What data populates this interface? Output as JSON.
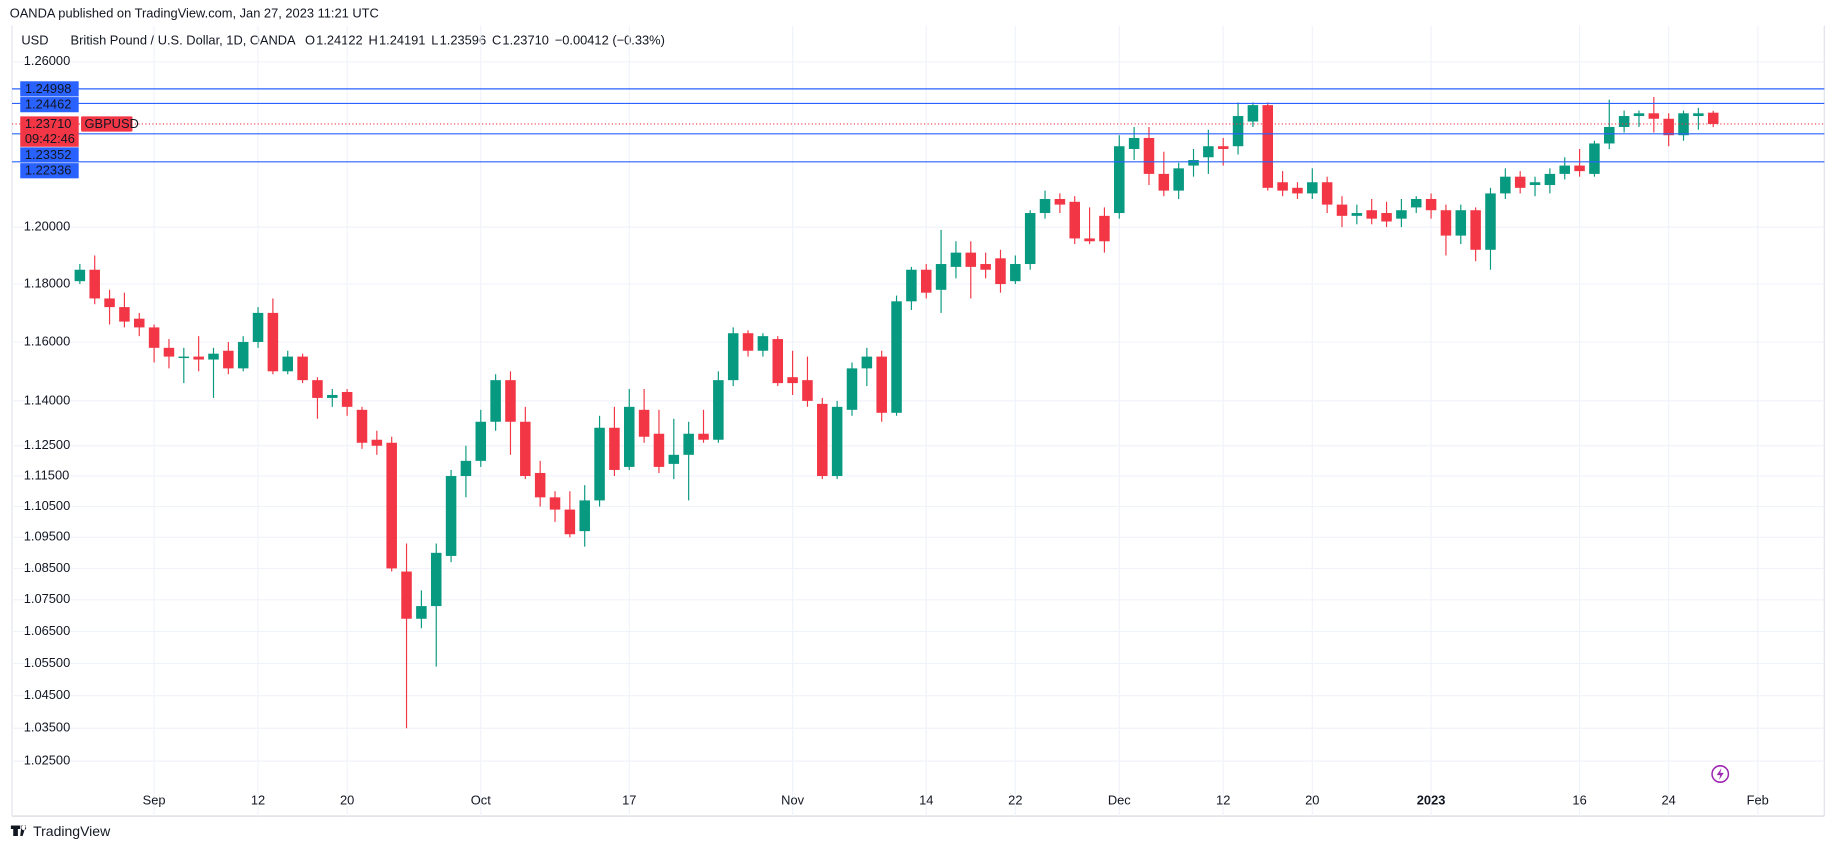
{
  "header": {
    "published": "OANDA published on TradingView.com, Jan 27, 2023 11:21 UTC",
    "brand": "TradingView"
  },
  "chart_data": {
    "type": "candlestick",
    "title": "British Pound / U.S. Dollar, 1D, OANDA",
    "currency": "USD",
    "legend": [
      {
        "key": "O",
        "value": "1.24122"
      },
      {
        "key": "H",
        "value": "1.24191"
      },
      {
        "key": "L",
        "value": "1.23596"
      },
      {
        "key": "C",
        "value": "1.23710"
      }
    ],
    "change": "−0.00412 (−0.33%)",
    "log": true,
    "grid": true,
    "up_color": "#089981",
    "down_color": "#f23645",
    "ylim": [
      1.0183,
      1.2735
    ],
    "yticks": [
      {
        "value": 1.26,
        "label": "1.26000"
      },
      {
        "value": 1.2,
        "label": "1.20000"
      },
      {
        "value": 1.18,
        "label": "1.18000"
      },
      {
        "value": 1.16,
        "label": "1.16000"
      },
      {
        "value": 1.14,
        "label": "1.14000"
      },
      {
        "value": 1.125,
        "label": "1.12500"
      },
      {
        "value": 1.115,
        "label": "1.11500"
      },
      {
        "value": 1.105,
        "label": "1.10500"
      },
      {
        "value": 1.095,
        "label": "1.09500"
      },
      {
        "value": 1.085,
        "label": "1.08500"
      },
      {
        "value": 1.075,
        "label": "1.07500"
      },
      {
        "value": 1.065,
        "label": "1.06500"
      },
      {
        "value": 1.055,
        "label": "1.05500"
      },
      {
        "value": 1.045,
        "label": "1.04500"
      },
      {
        "value": 1.035,
        "label": "1.03500"
      },
      {
        "value": 1.025,
        "label": "1.02500"
      }
    ],
    "price_lines": [
      {
        "value": 1.24998,
        "label": "1.24998",
        "color": "#2962ff"
      },
      {
        "value": 1.24462,
        "label": "1.24462",
        "color": "#2962ff"
      },
      {
        "value": 1.23352,
        "label": "1.23352",
        "color": "#2962ff"
      },
      {
        "value": 1.22336,
        "label": "1.22336",
        "color": "#2962ff"
      }
    ],
    "last_price": {
      "value": 1.2371,
      "label": "1.23710",
      "symbol": "GBPUSD",
      "countdown": "09:42:46",
      "color": "#f23645"
    },
    "categories": [
      null,
      null,
      null,
      null,
      null,
      "Sep",
      null,
      null,
      null,
      null,
      null,
      null,
      "12",
      null,
      null,
      null,
      null,
      null,
      "20",
      null,
      null,
      null,
      null,
      null,
      null,
      null,
      null,
      "Oct",
      null,
      null,
      null,
      null,
      null,
      null,
      null,
      null,
      null,
      "17",
      null,
      null,
      null,
      null,
      null,
      null,
      null,
      null,
      null,
      null,
      "Nov",
      null,
      null,
      null,
      null,
      null,
      null,
      null,
      null,
      "14",
      null,
      null,
      null,
      null,
      null,
      "22",
      null,
      null,
      null,
      null,
      null,
      null,
      "Dec",
      null,
      null,
      null,
      null,
      null,
      null,
      "12",
      null,
      null,
      null,
      null,
      null,
      "20",
      null,
      null,
      null,
      null,
      null,
      null,
      null,
      "2023",
      null,
      null,
      null,
      null,
      null,
      null,
      null,
      null,
      null,
      "16",
      null,
      null,
      null,
      null,
      null,
      "24",
      null,
      null,
      null,
      null,
      null,
      "Feb"
    ],
    "open": [
      1.181,
      1.185,
      1.175,
      1.172,
      1.168,
      1.165,
      1.158,
      1.1545,
      1.155,
      1.154,
      1.157,
      1.151,
      1.16,
      1.17,
      1.15,
      1.155,
      1.147,
      1.141,
      1.143,
      1.137,
      1.127,
      1.126,
      1.084,
      1.069,
      1.073,
      1.089,
      1.115,
      1.12,
      1.133,
      1.147,
      1.133,
      1.116,
      1.108,
      1.104,
      1.097,
      1.107,
      1.131,
      1.118,
      1.137,
      1.129,
      1.119,
      1.122,
      1.129,
      1.127,
      1.147,
      1.163,
      1.157,
      1.161,
      1.148,
      1.147,
      1.139,
      1.115,
      1.137,
      1.151,
      1.155,
      1.136,
      1.174,
      1.185,
      1.178,
      1.186,
      1.191,
      1.187,
      1.189,
      1.181,
      1.187,
      1.205,
      1.21,
      1.209,
      1.196,
      1.204,
      1.205,
      1.228,
      1.232,
      1.219,
      1.213,
      1.222,
      1.225,
      1.229,
      1.229,
      1.238,
      1.244,
      1.216,
      1.214,
      1.212,
      1.216,
      1.208,
      1.204,
      1.206,
      1.205,
      1.203,
      1.207,
      1.21,
      1.206,
      1.197,
      1.206,
      1.192,
      1.212,
      1.218,
      1.215,
      1.215,
      1.219,
      1.222,
      1.219,
      1.23,
      1.236,
      1.24,
      1.241,
      1.239,
      1.233,
      1.24,
      1.24122,
      null,
      null,
      null
    ],
    "high": [
      1.187,
      1.19,
      1.178,
      1.177,
      1.17,
      1.166,
      1.161,
      1.158,
      1.162,
      1.158,
      1.16,
      1.162,
      1.172,
      1.175,
      1.157,
      1.156,
      1.148,
      1.144,
      1.144,
      1.138,
      1.13,
      1.128,
      1.093,
      1.078,
      1.093,
      1.117,
      1.125,
      1.137,
      1.149,
      1.15,
      1.138,
      1.12,
      1.11,
      1.11,
      1.112,
      1.135,
      1.138,
      1.144,
      1.144,
      1.137,
      1.134,
      1.133,
      1.137,
      1.15,
      1.165,
      1.164,
      1.163,
      1.162,
      1.157,
      1.155,
      1.141,
      1.14,
      1.153,
      1.158,
      1.157,
      1.176,
      1.186,
      1.187,
      1.199,
      1.195,
      1.195,
      1.191,
      1.192,
      1.19,
      1.206,
      1.213,
      1.212,
      1.211,
      1.207,
      1.207,
      1.233,
      1.236,
      1.236,
      1.227,
      1.223,
      1.228,
      1.235,
      1.232,
      1.245,
      1.245,
      1.245,
      1.22,
      1.216,
      1.221,
      1.218,
      1.211,
      1.208,
      1.21,
      1.209,
      1.21,
      1.211,
      1.212,
      1.208,
      1.208,
      1.207,
      1.214,
      1.221,
      1.22,
      1.218,
      1.221,
      1.225,
      1.228,
      1.231,
      1.246,
      1.242,
      1.242,
      1.247,
      1.241,
      1.242,
      1.243,
      1.24191,
      null,
      null,
      null
    ],
    "low": [
      1.18,
      1.173,
      1.166,
      1.165,
      1.162,
      1.153,
      1.151,
      1.146,
      1.15,
      1.141,
      1.149,
      1.15,
      1.158,
      1.149,
      1.149,
      1.146,
      1.134,
      1.138,
      1.135,
      1.124,
      1.122,
      1.084,
      1.035,
      1.066,
      1.054,
      1.087,
      1.108,
      1.118,
      1.13,
      1.122,
      1.114,
      1.105,
      1.1,
      1.095,
      1.092,
      1.105,
      1.115,
      1.117,
      1.126,
      1.116,
      1.114,
      1.107,
      1.126,
      1.126,
      1.145,
      1.155,
      1.155,
      1.145,
      1.142,
      1.138,
      1.114,
      1.114,
      1.135,
      1.145,
      1.133,
      1.135,
      1.171,
      1.175,
      1.17,
      1.182,
      1.175,
      1.182,
      1.177,
      1.18,
      1.185,
      1.203,
      1.205,
      1.194,
      1.194,
      1.191,
      1.203,
      1.224,
      1.215,
      1.211,
      1.21,
      1.218,
      1.219,
      1.222,
      1.226,
      1.236,
      1.213,
      1.211,
      1.21,
      1.21,
      1.205,
      1.2,
      1.201,
      1.201,
      1.2,
      1.2,
      1.205,
      1.203,
      1.19,
      1.194,
      1.188,
      1.185,
      1.21,
      1.212,
      1.211,
      1.212,
      1.217,
      1.218,
      1.218,
      1.228,
      1.234,
      1.236,
      1.234,
      1.229,
      1.231,
      1.235,
      1.23596,
      null,
      null,
      null
    ],
    "close": [
      1.185,
      1.175,
      1.172,
      1.167,
      1.165,
      1.158,
      1.155,
      1.155,
      1.154,
      1.156,
      1.151,
      1.16,
      1.17,
      1.15,
      1.155,
      1.147,
      1.141,
      1.142,
      1.138,
      1.126,
      1.125,
      1.085,
      1.069,
      1.073,
      1.09,
      1.115,
      1.12,
      1.133,
      1.147,
      1.133,
      1.115,
      1.108,
      1.104,
      1.096,
      1.107,
      1.131,
      1.117,
      1.138,
      1.128,
      1.118,
      1.122,
      1.129,
      1.127,
      1.147,
      1.163,
      1.157,
      1.162,
      1.146,
      1.146,
      1.14,
      1.115,
      1.138,
      1.151,
      1.155,
      1.136,
      1.174,
      1.185,
      1.177,
      1.187,
      1.191,
      1.186,
      1.185,
      1.18,
      1.187,
      1.205,
      1.21,
      1.208,
      1.196,
      1.195,
      1.195,
      1.229,
      1.232,
      1.219,
      1.213,
      1.221,
      1.224,
      1.229,
      1.228,
      1.24,
      1.244,
      1.214,
      1.213,
      1.212,
      1.216,
      1.208,
      1.204,
      1.205,
      1.203,
      1.202,
      1.206,
      1.21,
      1.206,
      1.197,
      1.206,
      1.192,
      1.212,
      1.218,
      1.214,
      1.216,
      1.219,
      1.222,
      1.22,
      1.23,
      1.236,
      1.24,
      1.241,
      1.239,
      1.233,
      1.241,
      1.241,
      1.2371,
      null,
      null,
      null
    ]
  }
}
